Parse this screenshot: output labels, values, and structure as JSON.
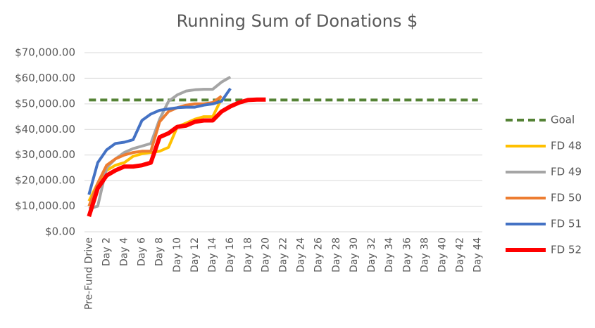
{
  "chart_data": {
    "type": "line",
    "title": "Running Sum of Donations $",
    "categories": [
      "Pre-Fund Drive",
      null,
      "Day 2",
      null,
      "Day 4",
      null,
      "Day 6",
      null,
      "Day 8",
      null,
      "Day 10",
      null,
      "Day 12",
      null,
      "Day 14",
      null,
      "Day 16",
      null,
      "Day 18",
      null,
      "Day 20",
      null,
      "Day 22",
      null,
      "Day 24",
      null,
      "Day 26",
      null,
      "Day 28",
      null,
      "Day 30",
      null,
      "Day 32",
      null,
      "Day 34",
      null,
      "Day 36",
      null,
      "Day 38",
      null,
      "Day 40",
      null,
      "Day 42",
      null,
      "Day 44"
    ],
    "ylim": [
      0,
      70000
    ],
    "yticks": [
      {
        "value": 0,
        "label": "$0.00"
      },
      {
        "value": 10000,
        "label": "$10,000.00"
      },
      {
        "value": 20000,
        "label": "$20,000.00"
      },
      {
        "value": 30000,
        "label": "$30,000.00"
      },
      {
        "value": 40000,
        "label": "$40,000.00"
      },
      {
        "value": 50000,
        "label": "$50,000.00"
      },
      {
        "value": 60000,
        "label": "$60,000.00"
      },
      {
        "value": 70000,
        "label": "$70,000.00"
      }
    ],
    "grid": true,
    "legend": "right",
    "series": [
      {
        "name": "Goal",
        "color": "#548235",
        "width": 4,
        "dash": true,
        "values": [
          51500,
          51500,
          51500,
          51500,
          51500,
          51500,
          51500,
          51500,
          51500,
          51500,
          51500,
          51500,
          51500,
          51500,
          51500,
          51500,
          51500,
          51500,
          51500,
          51500,
          51500,
          51500,
          51500,
          51500,
          51500,
          51500,
          51500,
          51500,
          51500,
          51500,
          51500,
          51500,
          51500,
          51500,
          51500,
          51500,
          51500,
          51500,
          51500,
          51500,
          51500,
          51500,
          51500,
          51500,
          51500
        ]
      },
      {
        "name": "FD 48",
        "color": "#ffc000",
        "width": 4,
        "dash": false,
        "values": [
          12000,
          19000,
          24000,
          26000,
          27000,
          29500,
          30500,
          31000,
          31500,
          33000,
          41000,
          42500,
          44000,
          45000,
          45000,
          52000,
          null,
          null,
          null,
          null,
          null,
          null,
          null,
          null,
          null,
          null,
          null,
          null,
          null,
          null,
          null,
          null,
          null,
          null,
          null,
          null,
          null,
          null,
          null,
          null,
          null,
          null,
          null,
          null,
          null
        ]
      },
      {
        "name": "FD 49",
        "color": "#a5a5a5",
        "width": 4,
        "dash": false,
        "values": [
          9000,
          10000,
          25000,
          28500,
          31000,
          32500,
          33500,
          34500,
          44000,
          51000,
          53500,
          55000,
          55500,
          55700,
          55700,
          58500,
          60500,
          null,
          null,
          null,
          null,
          null,
          null,
          null,
          null,
          null,
          null,
          null,
          null,
          null,
          null,
          null,
          null,
          null,
          null,
          null,
          null,
          null,
          null,
          null,
          null,
          null,
          null,
          null,
          null
        ]
      },
      {
        "name": "FD 50",
        "color": "#ed7d31",
        "width": 4,
        "dash": false,
        "values": [
          10000,
          19000,
          26000,
          28500,
          30000,
          31000,
          31500,
          31500,
          43000,
          47000,
          48500,
          49500,
          50000,
          50000,
          50500,
          53000,
          null,
          null,
          null,
          null,
          null,
          null,
          null,
          null,
          null,
          null,
          null,
          null,
          null,
          null,
          null,
          null,
          null,
          null,
          null,
          null,
          null,
          null,
          null,
          null,
          null,
          null,
          null,
          null,
          null
        ]
      },
      {
        "name": "FD 51",
        "color": "#4472c4",
        "width": 4,
        "dash": false,
        "values": [
          14500,
          27000,
          32000,
          34500,
          35000,
          36000,
          43500,
          46000,
          47500,
          48000,
          48500,
          48700,
          48700,
          49500,
          50000,
          51000,
          56000,
          null,
          null,
          null,
          null,
          null,
          null,
          null,
          null,
          null,
          null,
          null,
          null,
          null,
          null,
          null,
          null,
          null,
          null,
          null,
          null,
          null,
          null,
          null,
          null,
          null,
          null,
          null,
          null
        ]
      },
      {
        "name": "FD 52",
        "color": "#ff0000",
        "width": 6,
        "dash": false,
        "values": [
          6000,
          17000,
          22000,
          24000,
          25500,
          25500,
          26000,
          27000,
          37000,
          38500,
          41000,
          41500,
          43000,
          43500,
          43500,
          47000,
          49000,
          50500,
          51500,
          51700,
          51700,
          null,
          null,
          null,
          null,
          null,
          null,
          null,
          null,
          null,
          null,
          null,
          null,
          null,
          null,
          null,
          null,
          null,
          null,
          null,
          null,
          null,
          null,
          null,
          null
        ]
      }
    ]
  }
}
